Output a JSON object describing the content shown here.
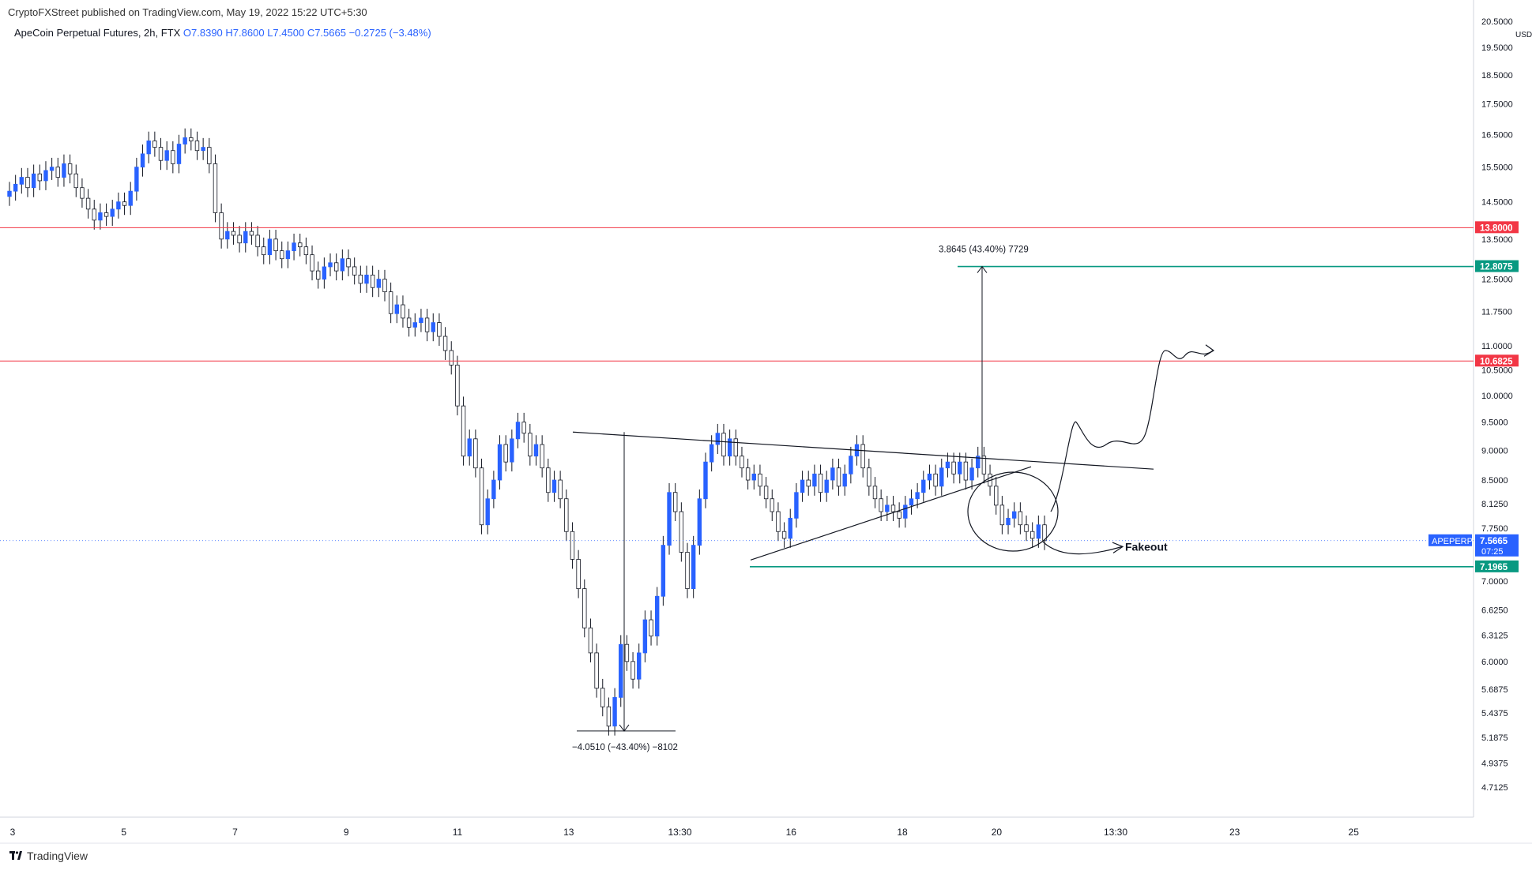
{
  "header": {
    "credit": "CryptoFXStreet published on TradingView.com, May 19, 2022 15:22 UTC+5:30",
    "symbol": "ApeCoin Perpetual Futures, 2h, FTX",
    "open": "O7.8390",
    "high": "H7.8600",
    "low": "L7.4500",
    "close": "C7.5665",
    "change": "−0.2725 (−3.48%)"
  },
  "footer": {
    "brand": "TradingView"
  },
  "colors": {
    "up": "#2962ff",
    "down": "#ffffff",
    "wick": "#131722",
    "resistance": "#f23645",
    "target": "#089981",
    "last": "#2962ff"
  },
  "chart_data": {
    "type": "candlestick",
    "title": "ApeCoin Perpetual Futures, 2h, FTX",
    "currency": "USD",
    "ylim": [
      4.45,
      20.6
    ],
    "y_scale": "log",
    "y_ticks": [
      "20.5000",
      "19.5000",
      "18.5000",
      "17.5000",
      "16.5000",
      "15.5000",
      "14.5000",
      "13.5000",
      "12.5000",
      "11.7500",
      "11.0000",
      "10.5000",
      "10.0000",
      "9.5000",
      "9.0000",
      "8.5000",
      "8.1250",
      "7.7500",
      "7.0000",
      "6.6250",
      "6.3125",
      "6.0000",
      "5.6875",
      "5.4375",
      "5.1875",
      "4.9375",
      "4.7125"
    ],
    "x_ticks": [
      "3",
      "5",
      "7",
      "9",
      "11",
      "13",
      "13:30",
      "16",
      "18",
      "20",
      "13:30",
      "23",
      "25"
    ],
    "price_labels": [
      {
        "value": 13.8,
        "label": "13.8000",
        "kind": "resistance"
      },
      {
        "value": 12.8075,
        "label": "12.8075",
        "kind": "target"
      },
      {
        "value": 10.6825,
        "label": "10.6825",
        "kind": "resistance"
      },
      {
        "value": 7.5665,
        "label": "7.5665",
        "kind": "last",
        "countdown": "07:25",
        "symbol_tag": "APEPERP"
      },
      {
        "value": 7.1965,
        "label": "7.1965",
        "kind": "target"
      }
    ],
    "annotations": [
      {
        "text": "3.8645 (43.40%) 7729",
        "kind": "measure-up"
      },
      {
        "text": "−4.0510 (−43.40%) −8102",
        "kind": "measure-down"
      },
      {
        "text": "Fakeout",
        "kind": "label"
      }
    ],
    "closes": [
      14.8,
      15.0,
      15.2,
      14.9,
      15.3,
      15.1,
      15.4,
      15.5,
      15.2,
      15.6,
      15.3,
      14.9,
      14.6,
      14.3,
      14.0,
      14.2,
      14.1,
      14.3,
      14.5,
      14.4,
      14.8,
      15.5,
      15.9,
      16.3,
      16.1,
      15.7,
      16.0,
      15.6,
      16.2,
      16.4,
      16.3,
      16.0,
      16.1,
      15.6,
      14.2,
      13.5,
      13.7,
      13.6,
      13.4,
      13.7,
      13.6,
      13.3,
      13.1,
      13.5,
      13.2,
      13.0,
      13.2,
      13.4,
      13.3,
      13.1,
      12.7,
      12.5,
      12.8,
      12.9,
      12.7,
      13.0,
      12.8,
      12.6,
      12.4,
      12.6,
      12.3,
      12.5,
      12.2,
      11.7,
      11.9,
      11.6,
      11.4,
      11.5,
      11.6,
      11.3,
      11.5,
      11.2,
      10.9,
      10.6,
      9.8,
      8.9,
      9.2,
      8.7,
      7.8,
      8.2,
      8.5,
      9.1,
      8.8,
      9.2,
      9.5,
      9.3,
      8.9,
      9.1,
      8.7,
      8.3,
      8.5,
      8.2,
      7.7,
      7.3,
      6.9,
      6.4,
      6.1,
      5.7,
      5.5,
      5.3,
      5.6,
      6.2,
      6.0,
      5.8,
      6.1,
      6.5,
      6.3,
      6.8,
      7.5,
      8.3,
      8.0,
      7.4,
      6.9,
      7.5,
      8.2,
      8.8,
      9.1,
      9.3,
      8.9,
      9.2,
      8.9,
      8.7,
      8.5,
      8.6,
      8.4,
      8.2,
      8.0,
      7.7,
      7.6,
      7.9,
      8.3,
      8.5,
      8.4,
      8.6,
      8.3,
      8.5,
      8.7,
      8.4,
      8.6,
      8.9,
      9.1,
      8.7,
      8.4,
      8.2,
      8.0,
      8.1,
      8.0,
      7.9,
      8.1,
      8.2,
      8.3,
      8.5,
      8.6,
      8.4,
      8.7,
      8.8,
      8.6,
      8.8,
      8.5,
      8.7,
      8.9,
      8.6,
      8.4,
      8.1,
      7.8,
      7.9,
      8.0,
      7.8,
      7.7,
      7.6,
      7.8,
      7.5665
    ]
  }
}
